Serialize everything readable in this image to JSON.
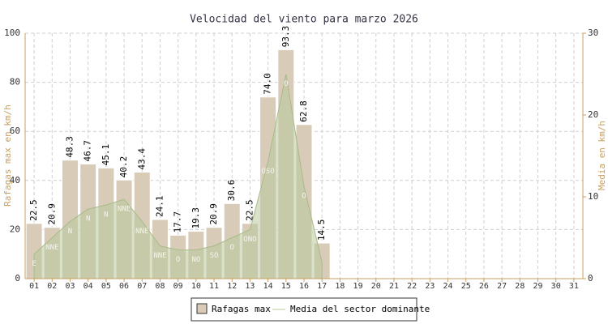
{
  "chart_data": {
    "type": "bar",
    "title": "Velocidad del viento para marzo 2026",
    "y_label": "Rafagas max en km/h",
    "y2_label": "Media en km/h",
    "categories": [
      "01",
      "02",
      "03",
      "04",
      "05",
      "06",
      "07",
      "08",
      "09",
      "10",
      "11",
      "12",
      "13",
      "14",
      "15",
      "16",
      "17",
      "18",
      "19",
      "20",
      "21",
      "22",
      "23",
      "24",
      "25",
      "26",
      "27",
      "28",
      "29",
      "30",
      "31"
    ],
    "series": [
      {
        "name": "Rafagas max",
        "color": "#d8ccb8",
        "values": [
          22.5,
          20.9,
          48.3,
          46.7,
          45.1,
          40.2,
          43.4,
          24.1,
          17.7,
          19.3,
          20.9,
          30.6,
          22.5,
          74.0,
          93.3,
          62.8,
          14.5,
          null,
          null,
          null,
          null,
          null,
          null,
          null,
          null,
          null,
          null,
          null,
          null,
          null,
          null
        ],
        "value_labels": [
          "22.5",
          "20.9",
          "48.3",
          "46.7",
          "45.1",
          "40.2",
          "43.4",
          "24.1",
          "17.7",
          "19.3",
          "20.9",
          "30.6",
          "22.5",
          "74.0",
          "93.3",
          "62.8",
          "14.5",
          null,
          null,
          null,
          null,
          null,
          null,
          null,
          null,
          null,
          null,
          null,
          null,
          null,
          null
        ]
      },
      {
        "name": "Media del sector dominante",
        "color": "#b9c99c",
        "axis": "y2",
        "values": [
          3,
          5,
          7,
          8.5,
          9,
          9.7,
          7,
          4,
          3.5,
          3.5,
          4,
          5,
          6,
          14.3,
          25,
          11.3,
          2,
          null,
          null,
          null,
          null,
          null,
          null,
          null,
          null,
          null,
          null,
          null,
          null,
          null,
          null
        ],
        "sector_labels": [
          "E",
          "NNE",
          "N",
          "N",
          "N",
          "NNE",
          "NNE",
          "NNE",
          "O",
          "NO",
          "SO",
          "O",
          "ONO",
          "OSO",
          "O",
          "O",
          null,
          null,
          null,
          null,
          null,
          null,
          null,
          null,
          null,
          null,
          null,
          null,
          null,
          null,
          null
        ]
      }
    ],
    "ylim": [
      0,
      100
    ],
    "yticks": [
      0,
      20,
      40,
      60,
      80,
      100
    ],
    "y2lim": [
      0,
      30
    ],
    "y2ticks": [
      0,
      10,
      20,
      30
    ],
    "grid": true
  }
}
